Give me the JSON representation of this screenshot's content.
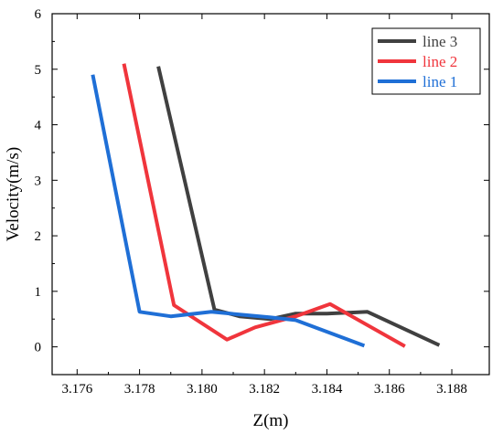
{
  "chart_data": {
    "type": "line",
    "title": "",
    "xlabel": "Z(m)",
    "ylabel": "Velocity(m/s)",
    "xlim": [
      3.1752,
      3.1892
    ],
    "ylim": [
      -0.5,
      6
    ],
    "xticks": [
      3.176,
      3.178,
      3.18,
      3.182,
      3.184,
      3.186,
      3.188
    ],
    "xtick_labels": [
      "3.176",
      "3.178",
      "3.180",
      "3.182",
      "3.184",
      "3.186",
      "3.188"
    ],
    "yticks": [
      0,
      1,
      2,
      3,
      4,
      5,
      6
    ],
    "ytick_labels": [
      "0",
      "1",
      "2",
      "3",
      "4",
      "5",
      "6"
    ],
    "grid": false,
    "legend": "top-right",
    "series": [
      {
        "name": "line 3",
        "color": "#404040",
        "x": [
          3.1786,
          3.1804,
          3.1812,
          3.1822,
          3.183,
          3.184,
          3.1853,
          3.1876
        ],
        "y": [
          5.05,
          0.67,
          0.55,
          0.5,
          0.6,
          0.6,
          0.63,
          0.03
        ]
      },
      {
        "name": "line 2",
        "color": "#f0353c",
        "x": [
          3.1775,
          3.1791,
          3.1808,
          3.1817,
          3.183,
          3.1841,
          3.1865
        ],
        "y": [
          5.1,
          0.75,
          0.13,
          0.35,
          0.55,
          0.77,
          0.01
        ]
      },
      {
        "name": "line 1",
        "color": "#1f6fd6",
        "x": [
          3.1765,
          3.178,
          3.179,
          3.1803,
          3.1822,
          3.183,
          3.1852
        ],
        "y": [
          4.9,
          0.63,
          0.55,
          0.63,
          0.53,
          0.48,
          0.02
        ]
      }
    ]
  }
}
